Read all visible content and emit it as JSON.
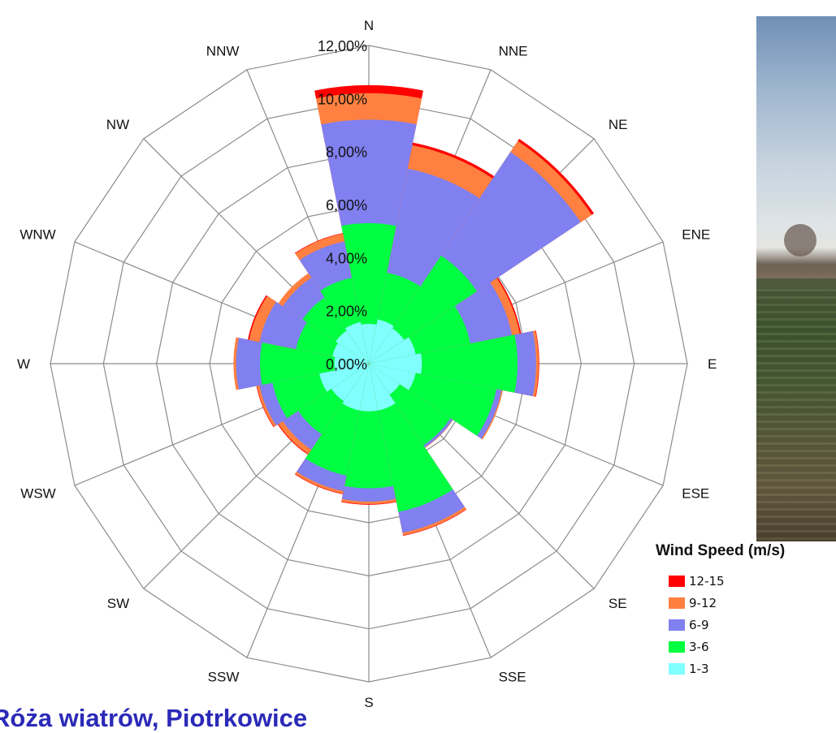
{
  "chart_data": {
    "type": "windrose",
    "directions": [
      "N",
      "NNE",
      "NE",
      "ENE",
      "E",
      "ESE",
      "SE",
      "SSE",
      "S",
      "SSW",
      "SW",
      "WSW",
      "W",
      "WNW",
      "NW",
      "NNW"
    ],
    "radial_ticks": [
      "0,00%",
      "2,00%",
      "4,00%",
      "6,00%",
      "8,00%",
      "10,00%",
      "12,00%"
    ],
    "rmax": 12,
    "legend_title": "Wind Speed (m/s)",
    "series": [
      {
        "name": "1-3",
        "color": "#80ffff",
        "values": [
          1.5,
          1.7,
          1.6,
          1.8,
          2.0,
          1.8,
          1.4,
          1.8,
          1.8,
          1.8,
          1.7,
          1.9,
          1.3,
          1.4,
          1.5,
          1.6
        ]
      },
      {
        "name": "3-6",
        "color": "#00ff40",
        "values": [
          3.8,
          1.8,
          3.3,
          2.1,
          3.6,
          3.1,
          2.3,
          3.9,
          2.9,
          2.5,
          1.5,
          1.8,
          2.8,
          1.4,
          1.5,
          1.7
        ]
      },
      {
        "name": "6-9",
        "color": "#8080f0",
        "values": [
          3.9,
          4.0,
          4.7,
          1.6,
          0.7,
          0.2,
          0.1,
          0.8,
          0.5,
          0.6,
          0.7,
          0.5,
          0.9,
          1.4,
          0.9,
          1.4
        ]
      },
      {
        "name": "9-12",
        "color": "#ff8040",
        "values": [
          1.0,
          0.9,
          0.5,
          0.3,
          0.1,
          0.05,
          0.02,
          0.1,
          0.1,
          0.1,
          0.2,
          0.1,
          0.1,
          0.4,
          0.2,
          0.3
        ]
      },
      {
        "name": "12-15",
        "color": "#ff0000",
        "values": [
          0.3,
          0.1,
          0.1,
          0.05,
          0.02,
          0,
          0,
          0.02,
          0.02,
          0.02,
          0.03,
          0.02,
          0,
          0.05,
          0,
          0.02
        ]
      }
    ]
  },
  "legend": {
    "title": "Wind Speed (m/s)",
    "items": [
      {
        "label": "12-15",
        "color": "#ff0000"
      },
      {
        "label": "9-12",
        "color": "#ff8040"
      },
      {
        "label": "6-9",
        "color": "#8080f0"
      },
      {
        "label": "3-6",
        "color": "#00ff40"
      },
      {
        "label": "1-3",
        "color": "#80ffff"
      }
    ]
  },
  "footer": {
    "title": "Róża wiatrów, Piotrkowice"
  },
  "photo": {
    "icon": "field-landscape-photo"
  }
}
